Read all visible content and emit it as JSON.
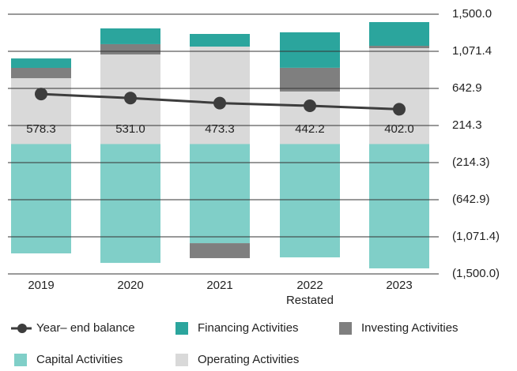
{
  "chart_data": {
    "type": "bar",
    "categories": [
      "2019",
      "2020",
      "2021",
      "2022",
      "2023"
    ],
    "annotations": [
      "Restated"
    ],
    "ylim": [
      -1500,
      1500
    ],
    "yticks": [
      {
        "value": 1500,
        "label": "1,500.0"
      },
      {
        "value": 1071.4,
        "label": "1,071.4"
      },
      642.9,
      214.3,
      {
        "value": -214.3,
        "label": "(214.3)"
      },
      {
        "value": -642.9,
        "label": "(642.9)"
      },
      {
        "value": -1071.4,
        "label": "(1,071.4)"
      },
      {
        "value": -1500,
        "label": "(1,500.0)"
      }
    ],
    "grid": true,
    "series": [
      {
        "name": "Year– end balance",
        "type": "line",
        "color": "#3d3d3d",
        "values": [
          578.3,
          531.0,
          473.3,
          442.2,
          402.0
        ],
        "value_labels": [
          "578.3",
          "531.0",
          "473.3",
          "442.2",
          "402.0"
        ]
      },
      {
        "name": "Financing Activities",
        "type": "bar",
        "color": "#2ba59d",
        "values": [
          109,
          182,
          146,
          410,
          274
        ]
      },
      {
        "name": "Investing Activities",
        "type": "bar",
        "color": "#7f7f7f",
        "values": [
          119,
          119,
          -173,
          274,
          27
        ]
      },
      {
        "name": "Capital Activities",
        "type": "bar",
        "color": "#80cfc8",
        "values": [
          -1263,
          -1373,
          -1145,
          -1309,
          -1436
        ]
      },
      {
        "name": "Operating Activities",
        "type": "bar",
        "color": "#d9d9d9",
        "values": [
          761,
          1035,
          1126,
          607,
          1108
        ]
      }
    ]
  }
}
